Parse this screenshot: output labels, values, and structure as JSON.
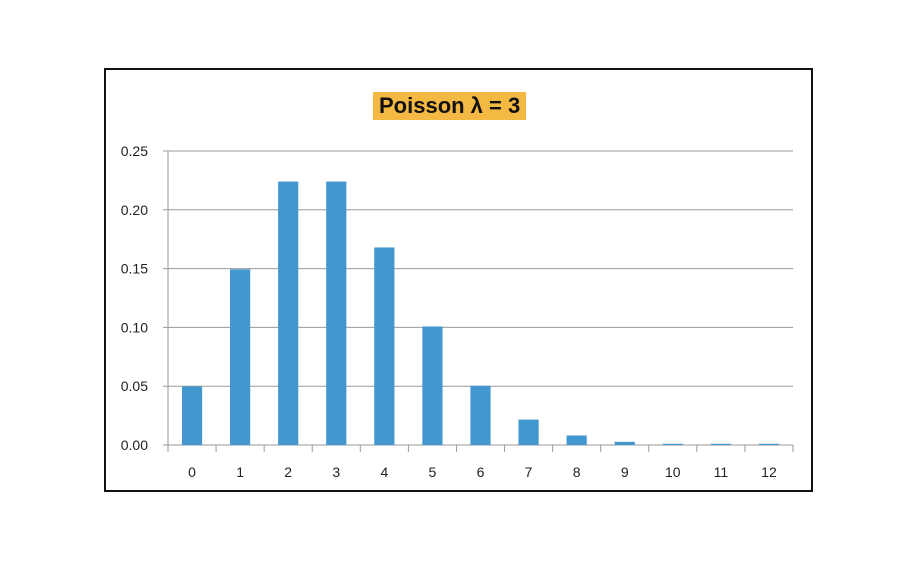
{
  "chart_data": {
    "type": "bar",
    "title": "Poisson λ = 3",
    "xlabel": "",
    "ylabel": "",
    "categories": [
      "0",
      "1",
      "2",
      "3",
      "4",
      "5",
      "6",
      "7",
      "8",
      "9",
      "10",
      "11",
      "12"
    ],
    "values": [
      0.0498,
      0.1494,
      0.224,
      0.224,
      0.168,
      0.1008,
      0.0504,
      0.0216,
      0.0081,
      0.0027,
      0.0008,
      0.0002,
      0.0001
    ],
    "ylim": [
      0,
      0.25
    ],
    "yticks": [
      "0.00",
      "0.05",
      "0.10",
      "0.15",
      "0.20",
      "0.25"
    ],
    "grid": true,
    "legend": "none",
    "colors": {
      "bar": "#4397cf",
      "title_bg": "#f4b942",
      "grid": "#9a9a9a",
      "frame": "#111111"
    }
  }
}
